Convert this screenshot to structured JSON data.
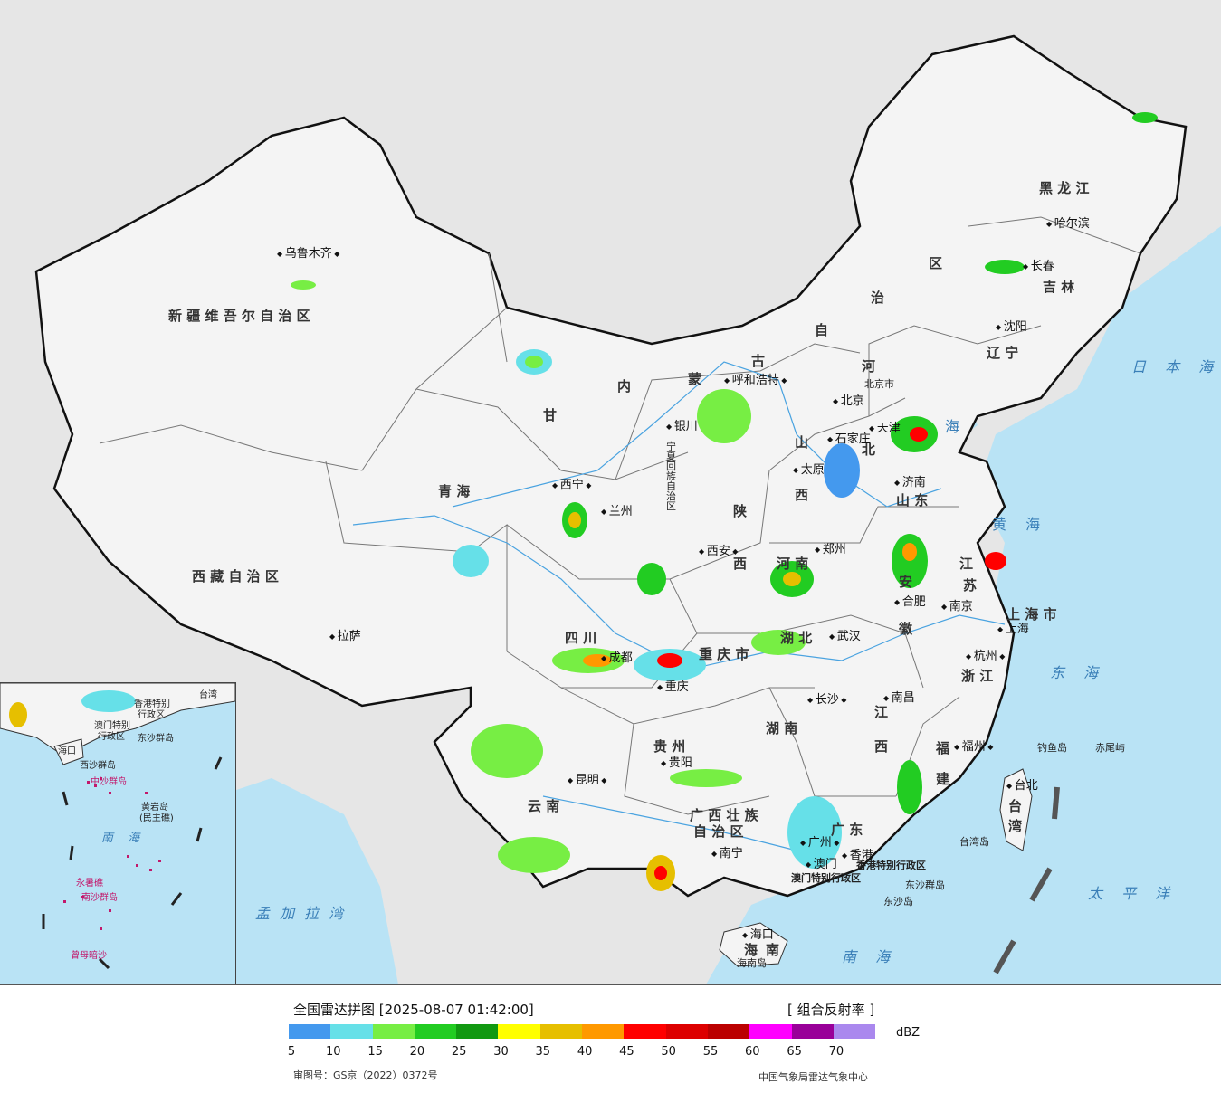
{
  "legend": {
    "title": "全国雷达拼图 [2025-08-07 01:42:00]",
    "product": "[ 组合反射率 ]",
    "unit": "dBZ",
    "colors": [
      "#4499ee",
      "#66e0e8",
      "#77ee44",
      "#22cc22",
      "#119911",
      "#ffff00",
      "#e6bf00",
      "#ff9900",
      "#ff0000",
      "#dd0000",
      "#bb0000",
      "#ff00ff",
      "#990099",
      "#aa88ee"
    ],
    "ticks": [
      "5",
      "10",
      "15",
      "20",
      "25",
      "30",
      "35",
      "40",
      "45",
      "50",
      "55",
      "60",
      "65",
      "70"
    ],
    "approval": "审图号：GS京（2022）0372号",
    "agency": "中国气象局雷达气象中心"
  },
  "provinces": {
    "heilongjiang": "黑 龙 江",
    "jilin": "吉 林",
    "liaoning": "辽 宁",
    "xinjiang": "新 疆 维 吾 尔 自 治 区",
    "xizang": "西 藏 自 治 区",
    "qinghai": "青 海",
    "gansu": "甘",
    "sichuan": "四 川",
    "yunnan": "云 南",
    "guizhou": "贵 州",
    "guangxi": "广 西 壮 族",
    "guangxi2": "自 治 区",
    "guangdong": "广 东",
    "hunan": "湖 南",
    "hubei": "湖 北",
    "henan": "河 南",
    "shaanxi": "陕",
    "shaanxi2": "西",
    "shanxi": "山",
    "shanxi2": "西",
    "hebei": "河",
    "hebei2": "北",
    "shandong": "山 东",
    "jiangsu": "江",
    "jiangsu2": "苏",
    "anhui": "安",
    "anhui2": "徽",
    "zhejiang": "浙 江",
    "jiangxi": "江",
    "jiangxi2": "西",
    "fujian": "福",
    "fujian2": "建",
    "taiwan": "台",
    "taiwan2": "湾",
    "hainan": "海",
    "hainan2": "南",
    "neimenggu1": "内",
    "neimenggu2": "蒙",
    "neimenggu3": "古",
    "neimenggu4": "自",
    "neimenggu5": "治",
    "neimenggu6": "区",
    "chongqing": "重 庆 市",
    "shanghai": "上 海 市",
    "ningxia": "宁夏回族自治区",
    "beijing": "北京市",
    "tianjin": "天津"
  },
  "cities": {
    "urumqi": "乌鲁木齐",
    "lhasa": "拉萨",
    "xining": "西宁",
    "lanzhou": "兰州",
    "yinchuan": "银川",
    "huhehaote": "呼和浩特",
    "beijing": "北京",
    "tianjin": "天津",
    "shijiazhuang": "石家庄",
    "taiyuan": "太原",
    "jinan": "济南",
    "zhengzhou": "郑州",
    "xian": "西安",
    "chengdu": "成都",
    "chongqing": "重庆",
    "wuhan": "武汉",
    "hefei": "合肥",
    "nanjing": "南京",
    "shanghai": "上海",
    "hangzhou": "杭州",
    "nanchang": "南昌",
    "changsha": "长沙",
    "guiyang": "贵阳",
    "kunming": "昆明",
    "nanning": "南宁",
    "guangzhou": "广州",
    "hongkong": "香港",
    "macau": "澳门",
    "fuzhou": "福州",
    "taibei": "台北",
    "haikou": "海口",
    "shenyang": "沈阳",
    "changchun": "长春",
    "haerbin": "哈尔滨"
  },
  "seas": {
    "japan": "日 本 海",
    "bohai": "海",
    "yellow": "黄 海",
    "east": "东 海",
    "pacific": "太 平 洋",
    "south": "南 海",
    "bengal": "孟 加 拉 湾"
  },
  "islands": {
    "diaoyu": "钓鱼岛",
    "chiwei": "赤尾屿",
    "taiwan_island": "台湾岛",
    "dongsha": "东沙群岛",
    "dongsha2": "东沙岛",
    "hainan_island": "海南岛",
    "hk_sar": "香港特别行政区",
    "macau_sar": "澳门特别行政区"
  },
  "inset": {
    "hk": "香港特别",
    "hk2": "行政区",
    "macau": "澳门特别",
    "macau2": "行政区",
    "haikou": "海口",
    "xisha": "西沙群岛",
    "zhongsha": "中沙群岛",
    "huangyan": "黄岩岛",
    "huangyan2": "(民主礁)",
    "nansha": "南沙群岛",
    "yongshu": "永暑礁",
    "zengmu": "曾母暗沙",
    "south_sea": "南 海",
    "dongsha": "东沙群岛",
    "taiwan": "台湾"
  }
}
